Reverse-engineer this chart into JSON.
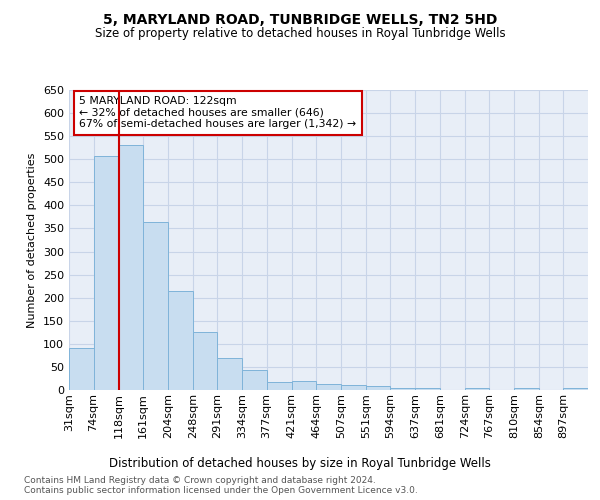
{
  "title": "5, MARYLAND ROAD, TUNBRIDGE WELLS, TN2 5HD",
  "subtitle": "Size of property relative to detached houses in Royal Tunbridge Wells",
  "xlabel": "Distribution of detached houses by size in Royal Tunbridge Wells",
  "ylabel": "Number of detached properties",
  "footer1": "Contains HM Land Registry data © Crown copyright and database right 2024.",
  "footer2": "Contains public sector information licensed under the Open Government Licence v3.0.",
  "annotation_line1": "5 MARYLAND ROAD: 122sqm",
  "annotation_line2": "← 32% of detached houses are smaller (646)",
  "annotation_line3": "67% of semi-detached houses are larger (1,342) →",
  "bar_color": "#c8ddf0",
  "bar_edge_color": "#7fb3d9",
  "grid_color": "#c8d4e8",
  "background_color": "#e8eef7",
  "vline_color": "#cc0000",
  "annotation_box_color": "#cc0000",
  "bin_edges": [
    31,
    74,
    118,
    161,
    204,
    248,
    291,
    334,
    377,
    421,
    464,
    507,
    551,
    594,
    637,
    681,
    724,
    767,
    810,
    854,
    897,
    940
  ],
  "bin_labels": [
    "31sqm",
    "74sqm",
    "118sqm",
    "161sqm",
    "204sqm",
    "248sqm",
    "291sqm",
    "334sqm",
    "377sqm",
    "421sqm",
    "464sqm",
    "507sqm",
    "551sqm",
    "594sqm",
    "637sqm",
    "681sqm",
    "724sqm",
    "767sqm",
    "810sqm",
    "854sqm",
    "897sqm"
  ],
  "values": [
    90,
    507,
    530,
    365,
    215,
    125,
    70,
    43,
    17,
    19,
    12,
    11,
    8,
    5,
    5,
    0,
    5,
    0,
    4,
    0,
    4
  ],
  "ylim": [
    0,
    650
  ],
  "yticks": [
    0,
    50,
    100,
    150,
    200,
    250,
    300,
    350,
    400,
    450,
    500,
    550,
    600,
    650
  ],
  "vline_x": 118
}
